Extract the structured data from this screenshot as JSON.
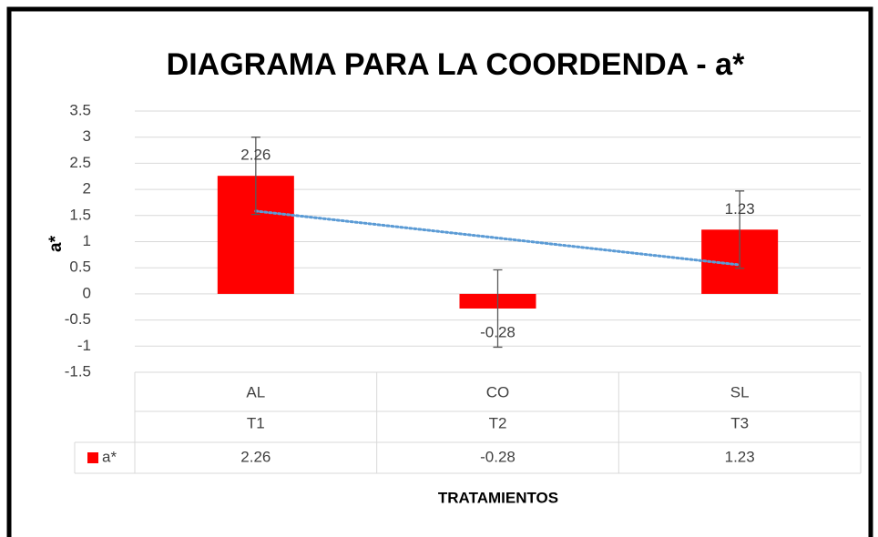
{
  "chart_data": {
    "type": "bar",
    "title": "DIAGRAMA PARA LA COORDENDA - a*",
    "x_label": "TRATAMIENTOS",
    "y_label": "a*",
    "categories": [
      "AL",
      "CO",
      "SL"
    ],
    "category_groups": [
      "T1",
      "T2",
      "T3"
    ],
    "series": [
      {
        "name": "a*",
        "color": "#ff0000",
        "values": [
          2.26,
          -0.28,
          1.23
        ],
        "errors": [
          0.74,
          0.74,
          0.74
        ]
      }
    ],
    "trendline": "linear",
    "trendline_color": "#5b9bd5",
    "ylim": [
      -1.5,
      3.5
    ],
    "yticks": [
      -1.5,
      -1,
      -0.5,
      0,
      0.5,
      1,
      1.5,
      2,
      2.5,
      3,
      3.5
    ],
    "grid": true,
    "data_table": true
  }
}
